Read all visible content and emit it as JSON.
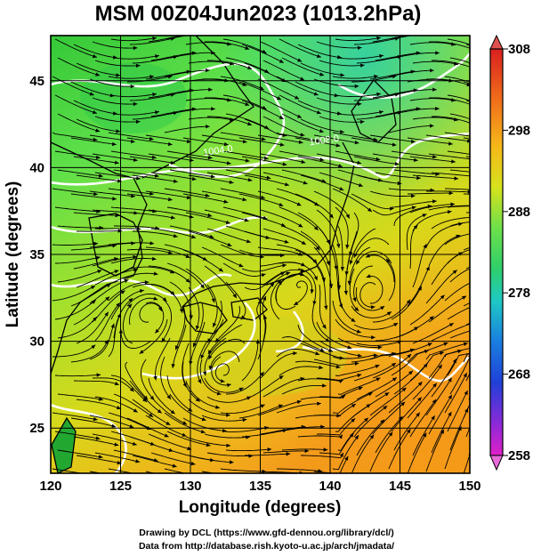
{
  "title": "MSM 00Z04Jun2023 (1013.2hPa)",
  "map": {
    "xlabel": "Longitude (degrees)",
    "ylabel": "Latitude  (degrees)",
    "lon_ticks": [
      120,
      125,
      130,
      135,
      140,
      145,
      150
    ],
    "lat_ticks": [
      25,
      30,
      35,
      40,
      45
    ],
    "lon_range": [
      120,
      150
    ],
    "lat_range": [
      22.4,
      47.6
    ],
    "isobar_labels": [
      {
        "text": "1004.0",
        "lon": 132.0,
        "lat": 40.8
      },
      {
        "text": "1008.0",
        "lon": 139.6,
        "lat": 41.4
      }
    ],
    "field": "temperature (K)",
    "vectors": "wind streamlines"
  },
  "colorbar": {
    "min": 258,
    "max": 308,
    "tick_labels": [
      308,
      298,
      288,
      278,
      268,
      258
    ]
  },
  "credits": {
    "line1": "Drawing by DCL (https://www.gfd-dennou.org/library/dcl/)",
    "line2": "Data from http://database.rish.kyoto-u.ac.jp/arch/jmadata/"
  }
}
